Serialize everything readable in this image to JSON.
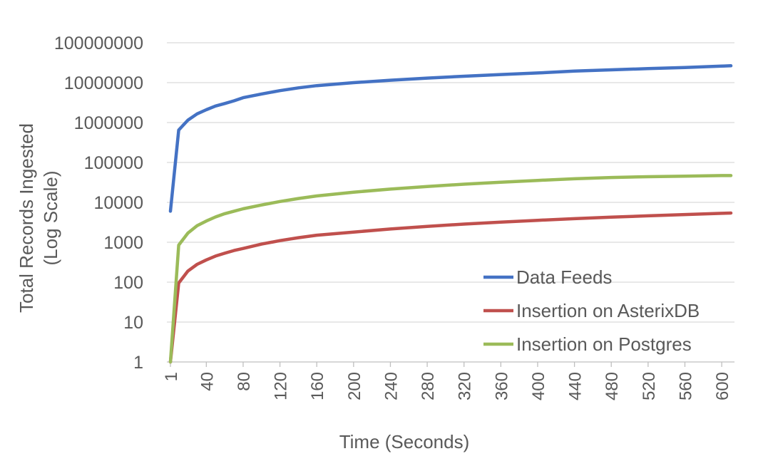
{
  "chart_data": {
    "type": "line",
    "xlabel": "Time (Seconds)",
    "ylabel": [
      "Total Records Ingested",
      "(Log Scale)"
    ],
    "yscale": "log",
    "ylim": [
      1,
      100000000
    ],
    "xlim": [
      1,
      610
    ],
    "x_ticks": [
      "1",
      "40",
      "80",
      "120",
      "160",
      "200",
      "240",
      "280",
      "320",
      "360",
      "400",
      "440",
      "480",
      "520",
      "560",
      "600"
    ],
    "y_ticks": [
      "1",
      "10",
      "100",
      "1000",
      "10000",
      "100000",
      "1000000",
      "10000000",
      "100000000"
    ],
    "grid": "horizontal",
    "legend_position": "bottom-right",
    "series": [
      {
        "name": "Data Feeds",
        "color": "#4472C4",
        "x": [
          1,
          10,
          20,
          30,
          40,
          50,
          60,
          70,
          80,
          100,
          120,
          140,
          160,
          200,
          240,
          280,
          320,
          360,
          400,
          440,
          480,
          520,
          560,
          600,
          610
        ],
        "y": [
          6000,
          650000,
          1150000,
          1650000,
          2100000,
          2600000,
          3000000,
          3500000,
          4200000,
          5200000,
          6300000,
          7400000,
          8400000,
          10000000,
          11500000,
          13000000,
          14500000,
          16000000,
          17500000,
          19500000,
          21000000,
          22500000,
          24000000,
          26000000,
          26500000
        ]
      },
      {
        "name": "Insertion on AsterixDB",
        "color": "#C0504D",
        "x": [
          1,
          10,
          20,
          30,
          40,
          50,
          60,
          70,
          80,
          100,
          120,
          140,
          160,
          200,
          240,
          280,
          320,
          360,
          400,
          440,
          480,
          520,
          560,
          600,
          610
        ],
        "y": [
          1,
          95,
          190,
          280,
          360,
          450,
          530,
          620,
          700,
          900,
          1100,
          1300,
          1500,
          1800,
          2150,
          2500,
          2850,
          3200,
          3550,
          3900,
          4250,
          4600,
          4950,
          5300,
          5400
        ]
      },
      {
        "name": "Insertion on Postgres",
        "color": "#9BBB59",
        "x": [
          1,
          10,
          20,
          30,
          40,
          50,
          60,
          70,
          80,
          100,
          120,
          140,
          160,
          200,
          240,
          280,
          320,
          360,
          400,
          440,
          480,
          520,
          560,
          600,
          610
        ],
        "y": [
          1,
          850,
          1700,
          2600,
          3400,
          4300,
          5200,
          6000,
          6900,
          8600,
          10500,
          12500,
          14500,
          18000,
          21500,
          25000,
          28500,
          32000,
          35500,
          39000,
          42000,
          44000,
          45500,
          47000,
          47000
        ]
      }
    ]
  }
}
